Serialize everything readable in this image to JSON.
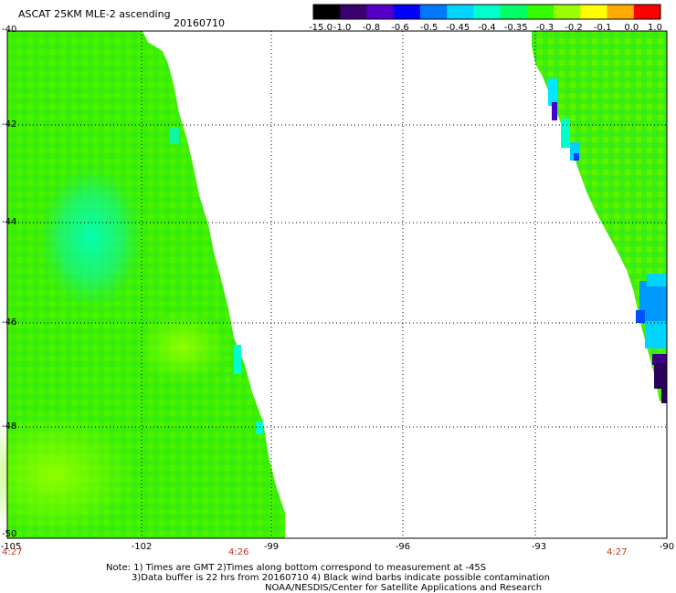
{
  "header": {
    "title": "ASCAT 25KM MLE-2 ascending",
    "date": "20160710"
  },
  "colorbar": {
    "ticks": [
      "-15.0",
      "-1.0",
      "-0.8",
      "-0.6",
      "-0.5",
      "-0.45",
      "-0.4",
      "-0.35",
      "-0.3",
      "-0.2",
      "-0.1",
      "0.0",
      "1.0"
    ],
    "colors": [
      "#000000",
      "#3a006e",
      "#5500c8",
      "#0000ff",
      "#0078ff",
      "#00d4ff",
      "#00ffcc",
      "#00ff66",
      "#33ff00",
      "#99ff00",
      "#ffff00",
      "#ffaa00",
      "#ff0000"
    ]
  },
  "axes": {
    "lat_labels": [
      "-40",
      "-42",
      "-44",
      "-46",
      "-48",
      "-50"
    ],
    "lon_labels": [
      "-105",
      "-102",
      "-99",
      "-96",
      "-93",
      "-90"
    ],
    "time_labels": [
      "4:27",
      "4:26",
      "4:27"
    ]
  },
  "notes": [
    "Note: 1) Times are GMT 2)Times along bottom correspond to measurement at -45S",
    "3)Data buffer is 22 hrs from 20160710 4) Black wind barbs indicate possible contamination",
    "NOAA/NESDIS/Center for Satellite Applications and Research"
  ]
}
